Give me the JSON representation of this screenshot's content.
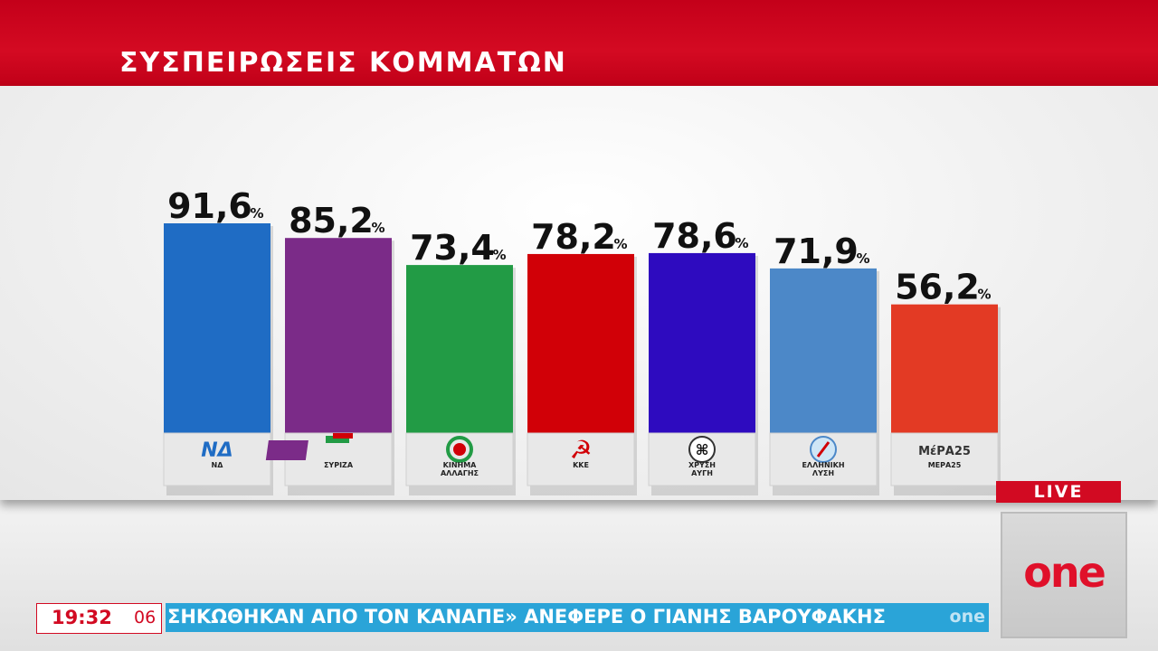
{
  "header": {
    "title": "ΣΥΣΠΕΙΡΩΣΕΙΣ ΚΟΜΜΑΤΩΝ"
  },
  "chart_data": {
    "type": "bar",
    "title": "ΣΥΣΠΕΙΡΩΣΕΙΣ ΚΟΜΜΑΤΩΝ",
    "unit": "%",
    "categories": [
      "ΝΔ",
      "ΣΥΡΙΖΑ",
      "ΚΙΝΗΜΑ ΑΛΛΑΓΗΣ",
      "ΚΚΕ",
      "ΧΡΥΣΗ ΑΥΓΗ",
      "ΕΛΛΗΝΙΚΗ ΛΥΣΗ",
      "ΜΕΡΑ25"
    ],
    "values": [
      91.6,
      85.2,
      73.4,
      78.2,
      78.6,
      71.9,
      56.2
    ],
    "value_labels": [
      "91,6",
      "85,2",
      "73,4",
      "78,2",
      "78,6",
      "71,9",
      "56,2"
    ],
    "label_lines": [
      [
        "ΝΔ"
      ],
      [
        "ΣΥΡΙΖΑ"
      ],
      [
        "ΚΙΝΗΜΑ",
        "ΑΛΛΑΓΗΣ"
      ],
      [
        "ΚΚΕ"
      ],
      [
        "ΧΡΥΣΗ",
        "ΑΥΓΗ"
      ],
      [
        "ΕΛΛΗΝΙΚΗ",
        "ΛΥΣΗ"
      ],
      [
        "ΜΕΡΑ25"
      ]
    ],
    "colors": [
      "#1f6cc4",
      "#7b2b88",
      "#229b45",
      "#d10007",
      "#2e0bbf",
      "#4c88c8",
      "#e33a24"
    ],
    "logo_texts": [
      "ΝΔ",
      "",
      "",
      "",
      "",
      "",
      "ΜέΡΑ25"
    ],
    "grid": false
  },
  "live": {
    "label": "LIVE"
  },
  "channel": {
    "logo": "one"
  },
  "clock": {
    "time": "19:32",
    "seconds": "06"
  },
  "ticker": {
    "text": "ΣΗΚΩΘΗΚΑΝ ΑΠΟ ΤΟΝ ΚΑΝΑΠΕ» ΑΝΕΦΕΡΕ Ο ΓΙΑΝΗΣ ΒΑΡΟΥΦΑΚΗΣ",
    "logo": "one"
  }
}
